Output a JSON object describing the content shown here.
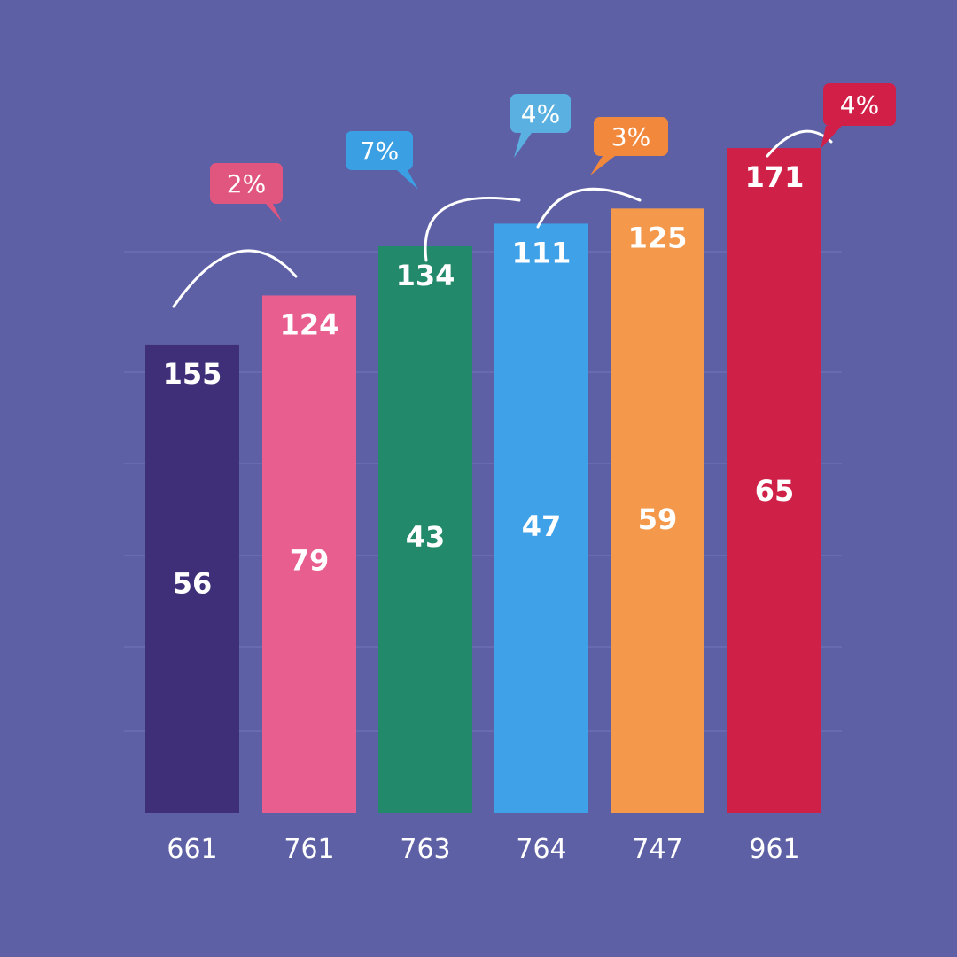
{
  "chart_data": {
    "type": "bar",
    "title": "",
    "xlabel": "",
    "ylabel": "",
    "ylim": [
      0,
      180
    ],
    "grid": true,
    "categories": [
      "661",
      "761",
      "763",
      "764",
      "747",
      "961"
    ],
    "values": [
      124,
      137,
      150,
      156,
      160,
      176
    ],
    "top_labels": [
      "155",
      "124",
      "134",
      "111",
      "125",
      "171"
    ],
    "mid_labels": [
      "56",
      "79",
      "43",
      "47",
      "59",
      "65"
    ],
    "callouts": [
      {
        "between": [
          0,
          1
        ],
        "text": "2%",
        "color": "#e0567f"
      },
      {
        "between": [
          2,
          3
        ],
        "text": "7%",
        "color": "#3a9fe3"
      },
      {
        "between": [
          3,
          4
        ],
        "text": "4%",
        "color": "#5ab0e0"
      },
      {
        "between": [
          3,
          4
        ],
        "text": "3%",
        "color": "#f2883c"
      },
      {
        "between": [
          5,
          5
        ],
        "text": "4%",
        "color": "#d21f47"
      }
    ],
    "colors": [
      "#3f2f78",
      "#e85f8f",
      "#23896b",
      "#3fa2e8",
      "#f4994c",
      "#cf2147"
    ]
  }
}
